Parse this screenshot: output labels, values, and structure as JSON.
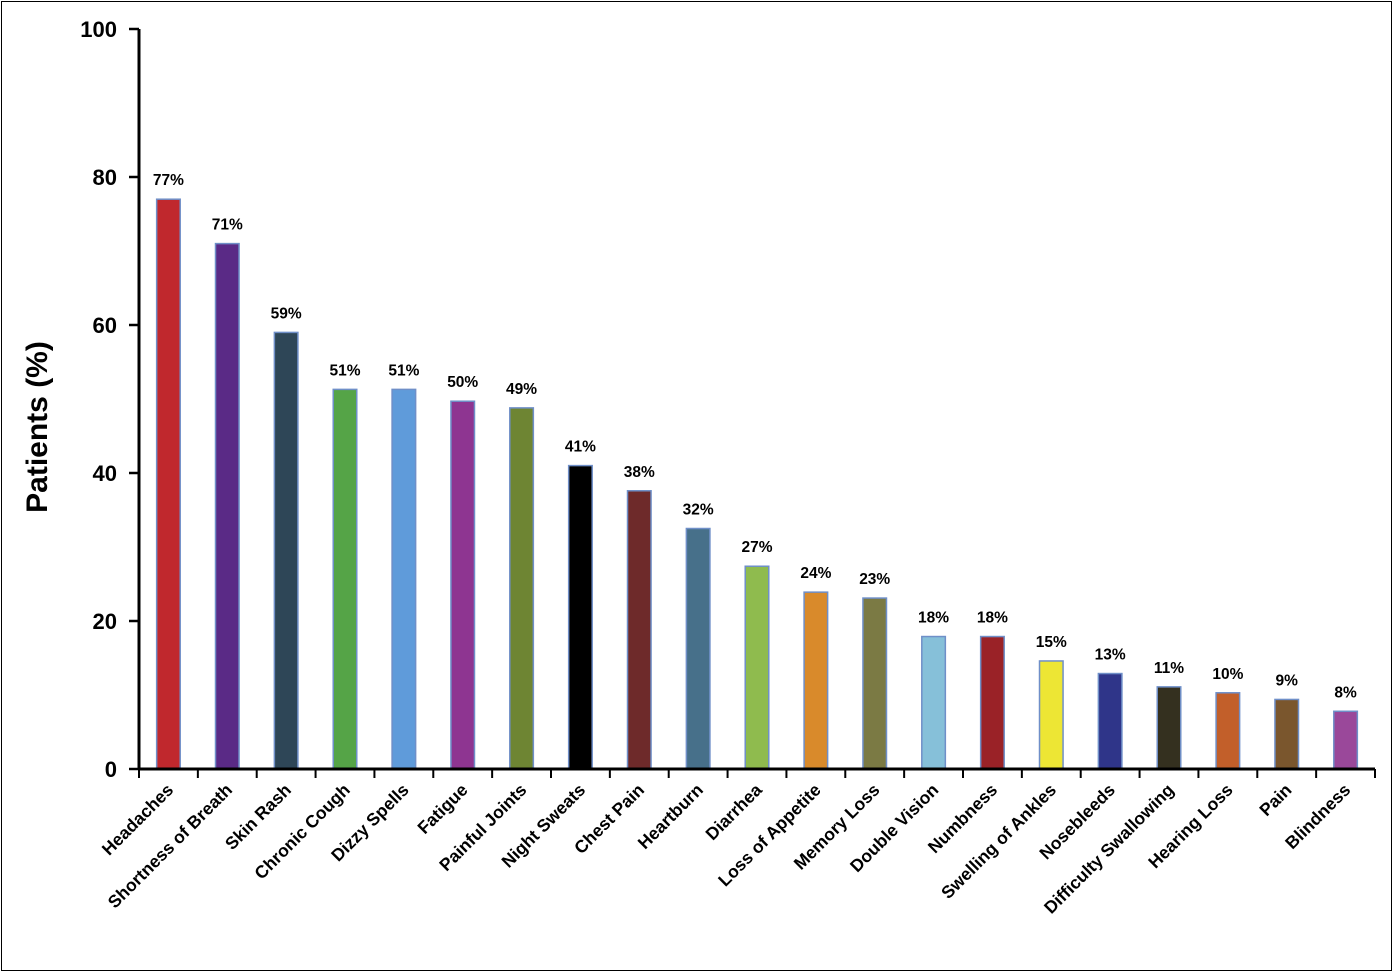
{
  "chart_data": {
    "type": "bar",
    "title": "",
    "xlabel": "",
    "ylabel": "Patients (%)",
    "ylim": [
      0,
      100
    ],
    "yticks": [
      0,
      20,
      40,
      60,
      80,
      100
    ],
    "grid": false,
    "legend": "none",
    "categories": [
      "Headaches",
      "Shortness of Breath",
      "Skin Rash",
      "Chronic Cough",
      "Dizzy Spells",
      "Fatigue",
      "Painful Joints",
      "Night Sweats",
      "Chest Pain",
      "Heartburn",
      "Diarrhea",
      "Loss of Appetite",
      "Memory Loss",
      "Double Vision",
      "Numbness",
      "Swelling of Ankles",
      "Nosebleeds",
      "Difficulty Swallowing",
      "Hearing Loss",
      "Pain",
      "Blindness"
    ],
    "values": [
      77,
      71,
      59,
      51.3,
      51.3,
      49.7,
      48.8,
      41,
      37.6,
      32.5,
      27.4,
      23.9,
      23.1,
      17.9,
      17.9,
      14.6,
      12.9,
      11.1,
      10.3,
      9.4,
      7.8
    ],
    "data_labels": [
      "77%",
      "71%",
      "59%",
      "51%",
      "51%",
      "50%",
      "49%",
      "41%",
      "38%",
      "32%",
      "27%",
      "24%",
      "23%",
      "18%",
      "18%",
      "15%",
      "13%",
      "11%",
      "10%",
      "9%",
      "8%"
    ],
    "colors": [
      "#C0282D",
      "#5A2A86",
      "#2E4657",
      "#55A447",
      "#5F9BDA",
      "#8E3591",
      "#6E8533",
      "#000000",
      "#6E2A2A",
      "#47708A",
      "#8FBB4E",
      "#D98A2B",
      "#7B7A44",
      "#86C0D9",
      "#9A2227",
      "#EDE634",
      "#2F3589",
      "#34301F",
      "#C25F2A",
      "#7A562D",
      "#9A489A"
    ],
    "bar_border": "#6F8FC8"
  }
}
